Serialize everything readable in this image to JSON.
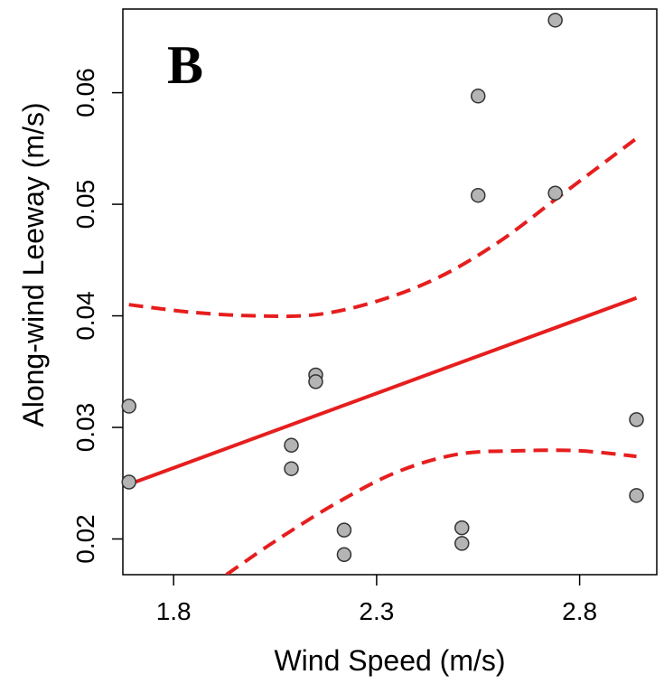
{
  "chart_data": {
    "type": "scatter",
    "panel_label": "B",
    "xlabel": "Wind Speed (m/s)",
    "ylabel": "Along-wind Leeway (m/s)",
    "xlim": [
      1.675,
      2.99
    ],
    "ylim": [
      0.0168,
      0.0675
    ],
    "xticks": [
      1.8,
      2.3,
      2.8
    ],
    "xtick_labels": [
      "1.8",
      "2.3",
      "2.8"
    ],
    "yticks": [
      0.02,
      0.03,
      0.04,
      0.05,
      0.06
    ],
    "ytick_labels": [
      "0.02",
      "0.03",
      "0.04",
      "0.05",
      "0.06"
    ],
    "grid": false,
    "points": [
      {
        "x": 1.69,
        "y": 0.0319
      },
      {
        "x": 1.69,
        "y": 0.0251
      },
      {
        "x": 2.09,
        "y": 0.0284
      },
      {
        "x": 2.09,
        "y": 0.0263
      },
      {
        "x": 2.15,
        "y": 0.0347
      },
      {
        "x": 2.15,
        "y": 0.0341
      },
      {
        "x": 2.22,
        "y": 0.0208
      },
      {
        "x": 2.22,
        "y": 0.0186
      },
      {
        "x": 2.51,
        "y": 0.021
      },
      {
        "x": 2.51,
        "y": 0.0196
      },
      {
        "x": 2.55,
        "y": 0.0597
      },
      {
        "x": 2.55,
        "y": 0.0508
      },
      {
        "x": 2.74,
        "y": 0.0665
      },
      {
        "x": 2.74,
        "y": 0.051
      },
      {
        "x": 2.94,
        "y": 0.0307
      },
      {
        "x": 2.94,
        "y": 0.0239
      }
    ],
    "fit_line": {
      "x": [
        1.69,
        2.94
      ],
      "y": [
        0.0249,
        0.0416
      ]
    },
    "upper_band": {
      "x": [
        1.69,
        1.85,
        2.0,
        2.15,
        2.3,
        2.45,
        2.6,
        2.75,
        2.94
      ],
      "y": [
        0.041,
        0.0403,
        0.04,
        0.0401,
        0.0413,
        0.0434,
        0.0466,
        0.0507,
        0.0559
      ]
    },
    "lower_band": {
      "x": [
        1.93,
        2.05,
        2.2,
        2.35,
        2.5,
        2.65,
        2.8,
        2.94
      ],
      "y": [
        0.0168,
        0.0198,
        0.0232,
        0.026,
        0.0276,
        0.0279,
        0.0279,
        0.0274
      ]
    },
    "colors": {
      "point_fill": "#b4b4b4",
      "point_stroke": "#333333",
      "line": "#e61e1e",
      "axis": "#000000"
    }
  }
}
